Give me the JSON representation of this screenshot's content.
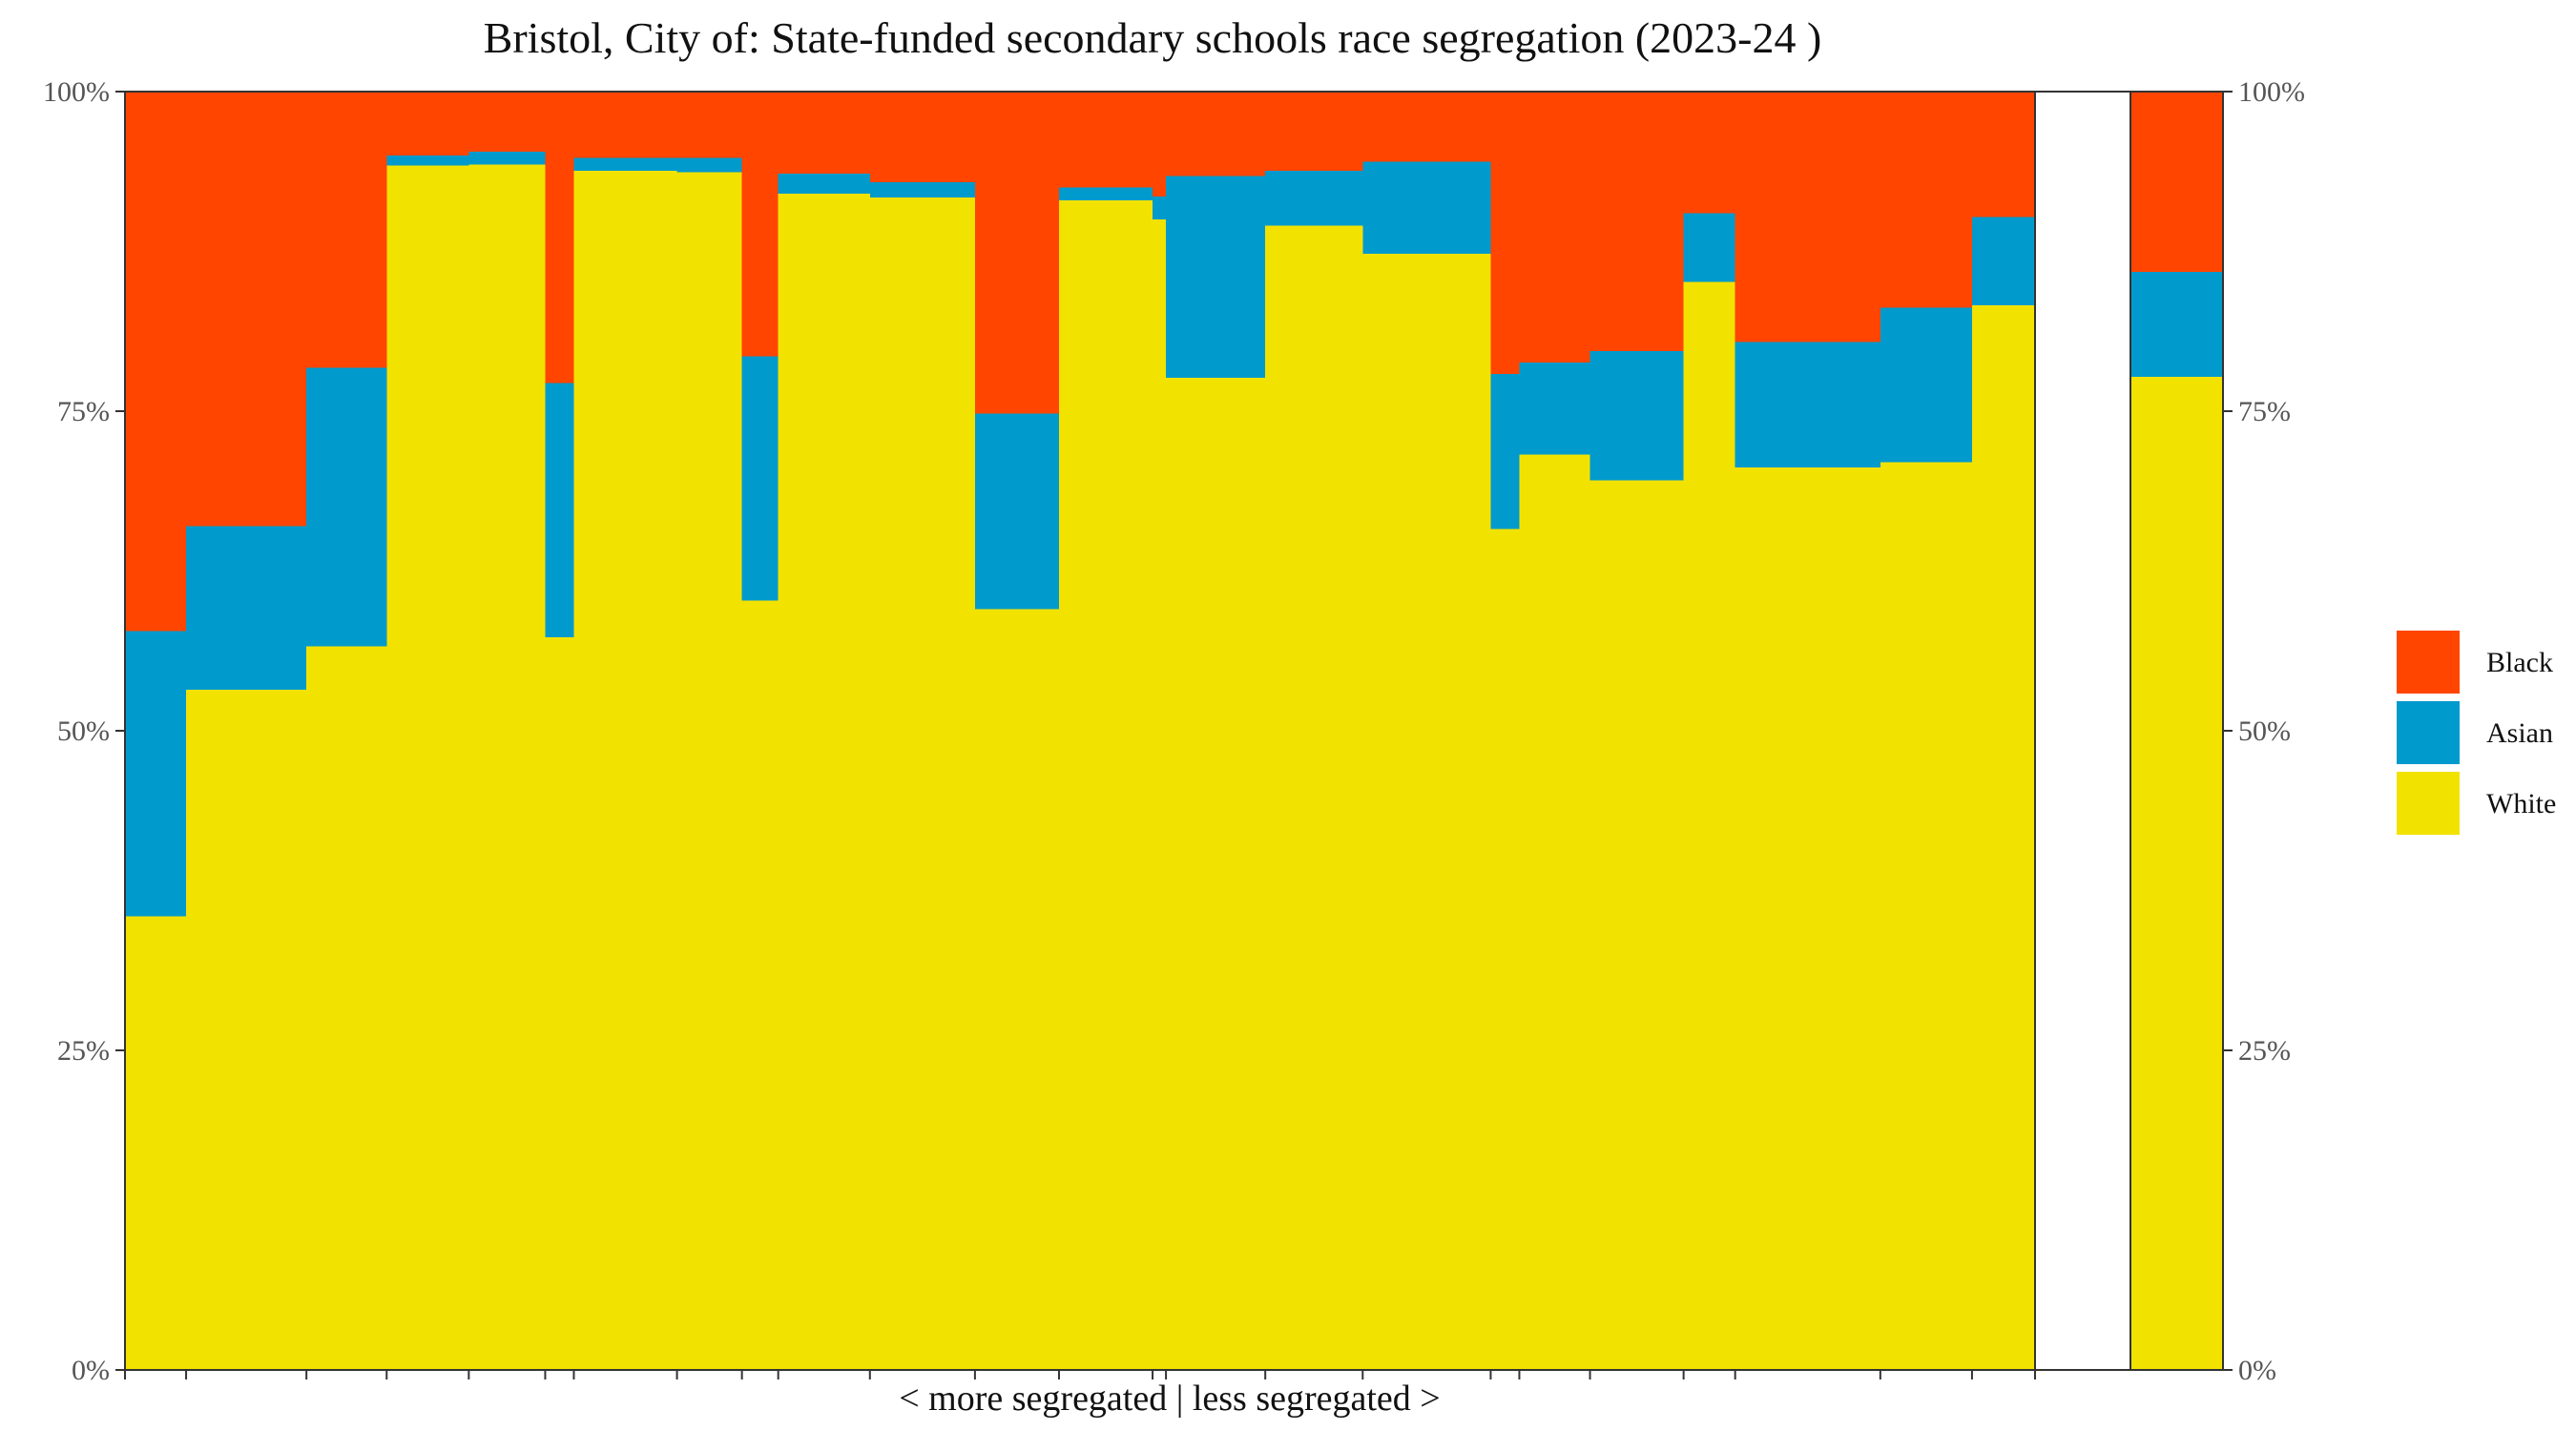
{
  "chart_data": {
    "type": "bar",
    "title": "Bristol, City of: State-funded secondary schools race segregation (2023-24 )",
    "xlabel": "< more segregated | less segregated >",
    "ylabel": "",
    "ylim": [
      0,
      100
    ],
    "y_ticks": [
      "0%",
      "25%",
      "50%",
      "75%",
      "100%"
    ],
    "y_tick_values": [
      0,
      25,
      50,
      75,
      100
    ],
    "legend": [
      "Black",
      "Asian",
      "White"
    ],
    "legend_position": "right",
    "colors": {
      "Black": "#FF4500",
      "Asian": "#009ACD",
      "White": "#F2E200"
    },
    "x_units": "cumulative pupil share (0-1) along the x axis",
    "schools": [
      {
        "x0": 0.0,
        "x1": 0.032,
        "white": 35.5,
        "asian": 22.3,
        "black": 42.2
      },
      {
        "x0": 0.032,
        "x1": 0.095,
        "white": 53.2,
        "asian": 12.8,
        "black": 34.0
      },
      {
        "x0": 0.095,
        "x1": 0.137,
        "white": 56.6,
        "asian": 21.8,
        "black": 21.6
      },
      {
        "x0": 0.137,
        "x1": 0.18,
        "white": 94.2,
        "asian": 0.8,
        "black": 5.0
      },
      {
        "x0": 0.18,
        "x1": 0.22,
        "white": 94.3,
        "asian": 1.0,
        "black": 4.7
      },
      {
        "x0": 0.22,
        "x1": 0.235,
        "white": 57.3,
        "asian": 19.9,
        "black": 22.8
      },
      {
        "x0": 0.235,
        "x1": 0.289,
        "white": 93.8,
        "asian": 1.0,
        "black": 5.2
      },
      {
        "x0": 0.289,
        "x1": 0.323,
        "white": 93.7,
        "asian": 1.1,
        "black": 5.2
      },
      {
        "x0": 0.323,
        "x1": 0.342,
        "white": 60.2,
        "asian": 19.1,
        "black": 20.7
      },
      {
        "x0": 0.342,
        "x1": 0.39,
        "white": 92.0,
        "asian": 1.6,
        "black": 6.4
      },
      {
        "x0": 0.39,
        "x1": 0.445,
        "white": 91.7,
        "asian": 1.2,
        "black": 7.1
      },
      {
        "x0": 0.445,
        "x1": 0.489,
        "white": 59.5,
        "asian": 15.3,
        "black": 25.2
      },
      {
        "x0": 0.489,
        "x1": 0.538,
        "white": 91.5,
        "asian": 1.0,
        "black": 7.5
      },
      {
        "x0": 0.538,
        "x1": 0.545,
        "white": 90.0,
        "asian": 1.8,
        "black": 8.2
      },
      {
        "x0": 0.545,
        "x1": 0.597,
        "white": 77.6,
        "asian": 15.8,
        "black": 6.6
      },
      {
        "x0": 0.597,
        "x1": 0.648,
        "white": 89.5,
        "asian": 4.3,
        "black": 6.2
      },
      {
        "x0": 0.648,
        "x1": 0.715,
        "white": 87.3,
        "asian": 7.2,
        "black": 5.5
      },
      {
        "x0": 0.715,
        "x1": 0.73,
        "white": 65.8,
        "asian": 12.1,
        "black": 22.1
      },
      {
        "x0": 0.73,
        "x1": 0.767,
        "white": 71.6,
        "asian": 7.2,
        "black": 21.2
      },
      {
        "x0": 0.767,
        "x1": 0.816,
        "white": 69.6,
        "asian": 10.1,
        "black": 20.3
      },
      {
        "x0": 0.816,
        "x1": 0.843,
        "white": 85.1,
        "asian": 5.4,
        "black": 9.5
      },
      {
        "x0": 0.843,
        "x1": 0.919,
        "white": 70.6,
        "asian": 9.8,
        "black": 19.6
      },
      {
        "x0": 0.919,
        "x1": 0.967,
        "white": 71.0,
        "asian": 12.1,
        "black": 16.9
      },
      {
        "x0": 0.967,
        "x1": 1.0,
        "white": 83.3,
        "asian": 6.9,
        "black": 9.8
      }
    ],
    "overall": {
      "white": 77.7,
      "asian": 8.2,
      "black": 14.1
    },
    "x_ticks": [
      0.0,
      0.032,
      0.095,
      0.137,
      0.18,
      0.22,
      0.235,
      0.289,
      0.323,
      0.342,
      0.39,
      0.445,
      0.489,
      0.538,
      0.545,
      0.597,
      0.648,
      0.715,
      0.73,
      0.767,
      0.816,
      0.843,
      0.919,
      0.967,
      1.0
    ]
  }
}
